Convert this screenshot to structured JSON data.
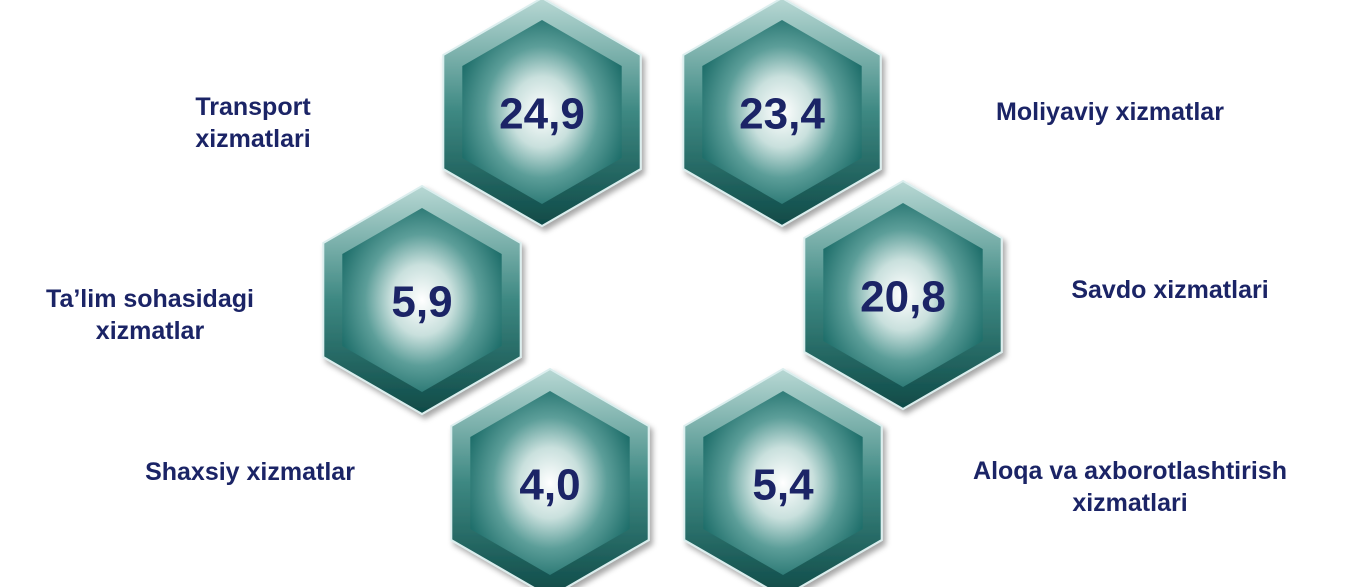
{
  "items": [
    {
      "value": "24,9",
      "label": [
        "Transport",
        "xizmatlari"
      ]
    },
    {
      "value": "23,4",
      "label": [
        "Moliyaviy xizmatlar"
      ]
    },
    {
      "value": "5,9",
      "label": [
        "Ta’lim sohasidagi",
        "xizmatlar"
      ]
    },
    {
      "value": "20,8",
      "label": [
        "Savdo xizmatlari"
      ]
    },
    {
      "value": "4,0",
      "label": [
        "Shaxsiy xizmatlar"
      ]
    },
    {
      "value": "5,4",
      "label": [
        "Aloqa va axborotlashtirish",
        "xizmatlari"
      ]
    }
  ],
  "colors": {
    "text": "#1b2466",
    "hex_center": "#ffffff",
    "hex_mid": "#7fb3ae",
    "hex_edge": "#1f6f6b",
    "hex_border": "#9fc8c4"
  }
}
